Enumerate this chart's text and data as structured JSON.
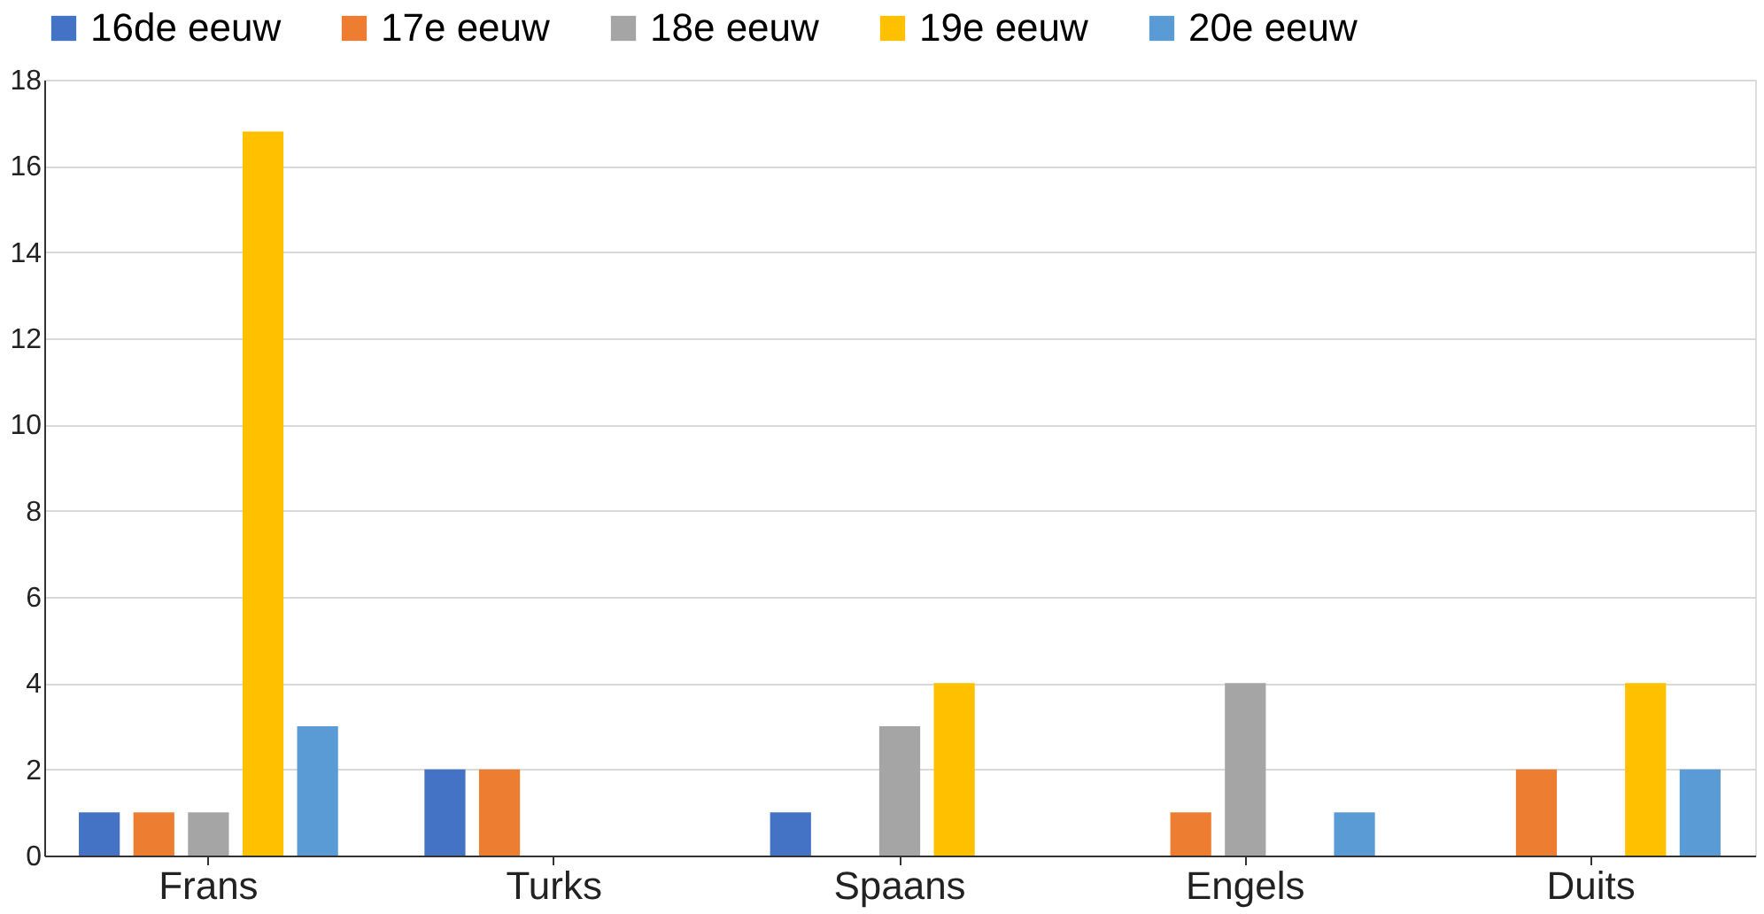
{
  "chart_data": {
    "type": "bar",
    "categories": [
      "Frans",
      "Turks",
      "Spaans",
      "Engels",
      "Duits"
    ],
    "series": [
      {
        "name": "16de eeuw",
        "color": "#4472c4",
        "values": [
          1,
          2,
          1,
          null,
          null
        ]
      },
      {
        "name": "17e eeuw",
        "color": "#ed7d31",
        "values": [
          1,
          2,
          null,
          1,
          2
        ]
      },
      {
        "name": "18e eeuw",
        "color": "#a5a5a5",
        "values": [
          1,
          null,
          3,
          4,
          null
        ]
      },
      {
        "name": "19e eeuw",
        "color": "#ffc000",
        "values": [
          16.8,
          null,
          4,
          null,
          4
        ]
      },
      {
        "name": "20e eeuw",
        "color": "#5b9bd5",
        "values": [
          3,
          null,
          null,
          1,
          2
        ]
      }
    ],
    "ylim": [
      0,
      18
    ],
    "yticks": [
      0,
      2,
      4,
      6,
      8,
      10,
      12,
      14,
      16,
      18
    ],
    "grid": "y",
    "legend": "top"
  }
}
